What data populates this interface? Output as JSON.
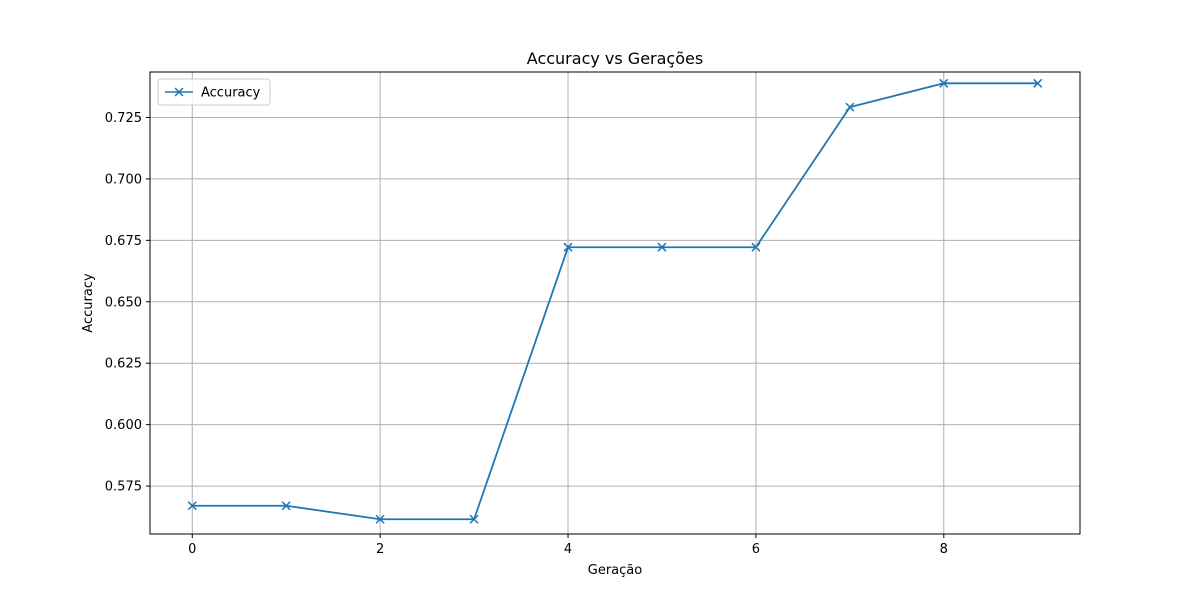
{
  "chart_data": {
    "type": "line",
    "title": "Accuracy vs Gerações",
    "xlabel": "Geração",
    "ylabel": "Accuracy",
    "xlim": [
      -0.45,
      9.45
    ],
    "ylim": [
      0.5555,
      0.7435
    ],
    "xticks": [
      0,
      2,
      4,
      6,
      8
    ],
    "xtick_labels": [
      "0",
      "2",
      "4",
      "6",
      "8"
    ],
    "yticks": [
      0.575,
      0.6,
      0.625,
      0.65,
      0.675,
      0.7,
      0.725
    ],
    "ytick_labels": [
      "0.575",
      "0.600",
      "0.625",
      "0.650",
      "0.675",
      "0.700",
      "0.725"
    ],
    "grid": true,
    "legend_position": "upper-left",
    "x": [
      0,
      1,
      2,
      3,
      4,
      5,
      6,
      7,
      8,
      9
    ],
    "series": [
      {
        "name": "Accuracy",
        "values": [
          0.567,
          0.567,
          0.5615,
          0.5615,
          0.6722,
          0.6722,
          0.6722,
          0.7292,
          0.7389,
          0.7389
        ],
        "color": "#1f77b4",
        "marker": "x"
      }
    ]
  }
}
